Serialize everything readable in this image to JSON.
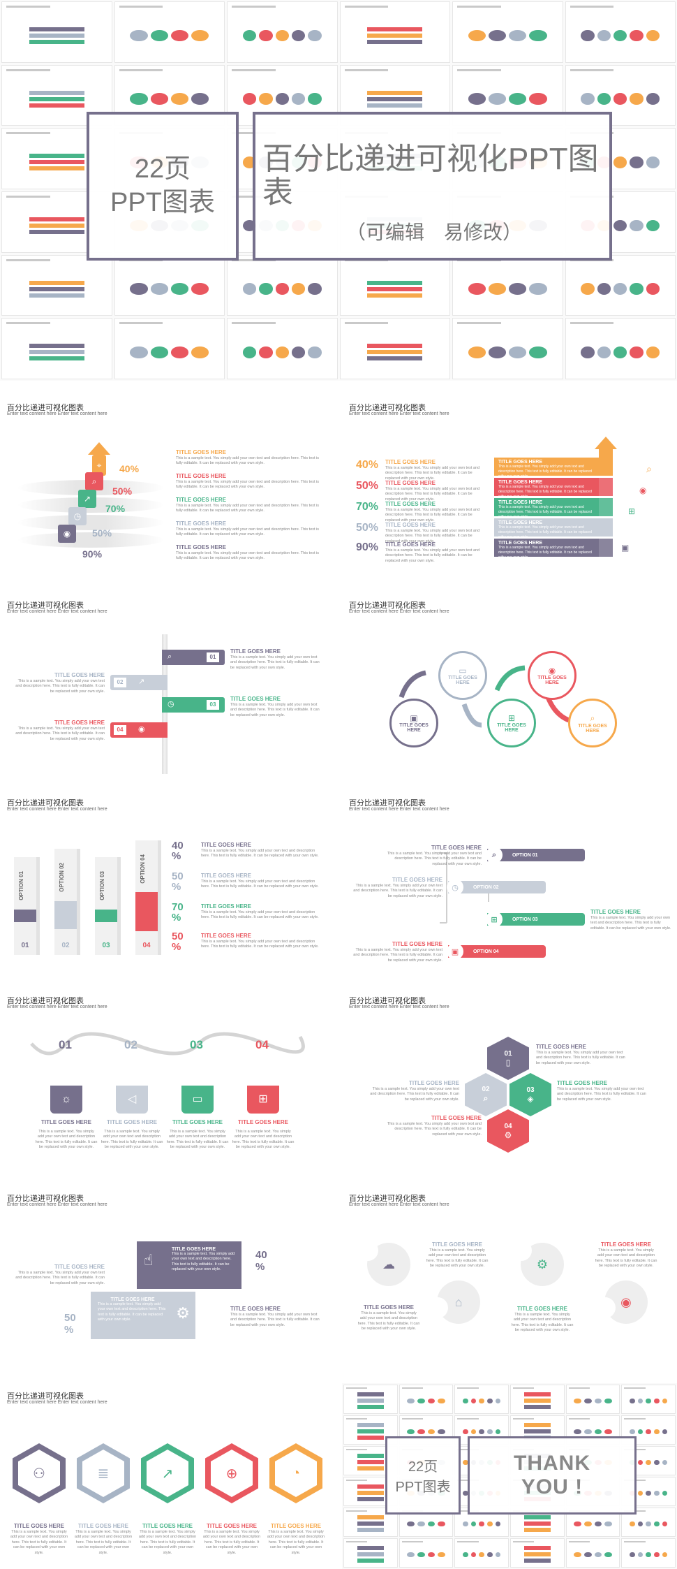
{
  "cover": {
    "pages": "22页",
    "pages_sub": "PPT图表",
    "title": "百分比递进可视化PPT图表",
    "subtitle": "（可编辑　易修改）"
  },
  "common": {
    "slide_title": "百分比递进可视化图表",
    "slide_sub": "Enter text content here Enter text content here",
    "title_here": "TITLE GOES HERE",
    "body": "This is a sample text. You simply add your own text and description here. This text is fully editable. It can be replaced with your own style."
  },
  "percent": {
    "p40": "40%",
    "p50": "50%",
    "p70": "70%",
    "p90": "90%",
    "n40": "40",
    "n50": "50",
    "n70": "70",
    "sym": "%"
  },
  "nums": {
    "n1": "01",
    "n2": "02",
    "n3": "03",
    "n4": "04"
  },
  "options": {
    "o1": "OPTION 01",
    "o2": "OPTION 02",
    "o3": "OPTION 03",
    "o4": "OPTION 04"
  },
  "end": {
    "pages": "22页",
    "pages_sub": "PPT图表",
    "thanks1": "THANK",
    "thanks2": "YOU !"
  },
  "colors": {
    "orange": "#f6a84b",
    "red": "#e9575f",
    "green": "#48b489",
    "grey": "#a7b4c5",
    "purple": "#76708c"
  }
}
